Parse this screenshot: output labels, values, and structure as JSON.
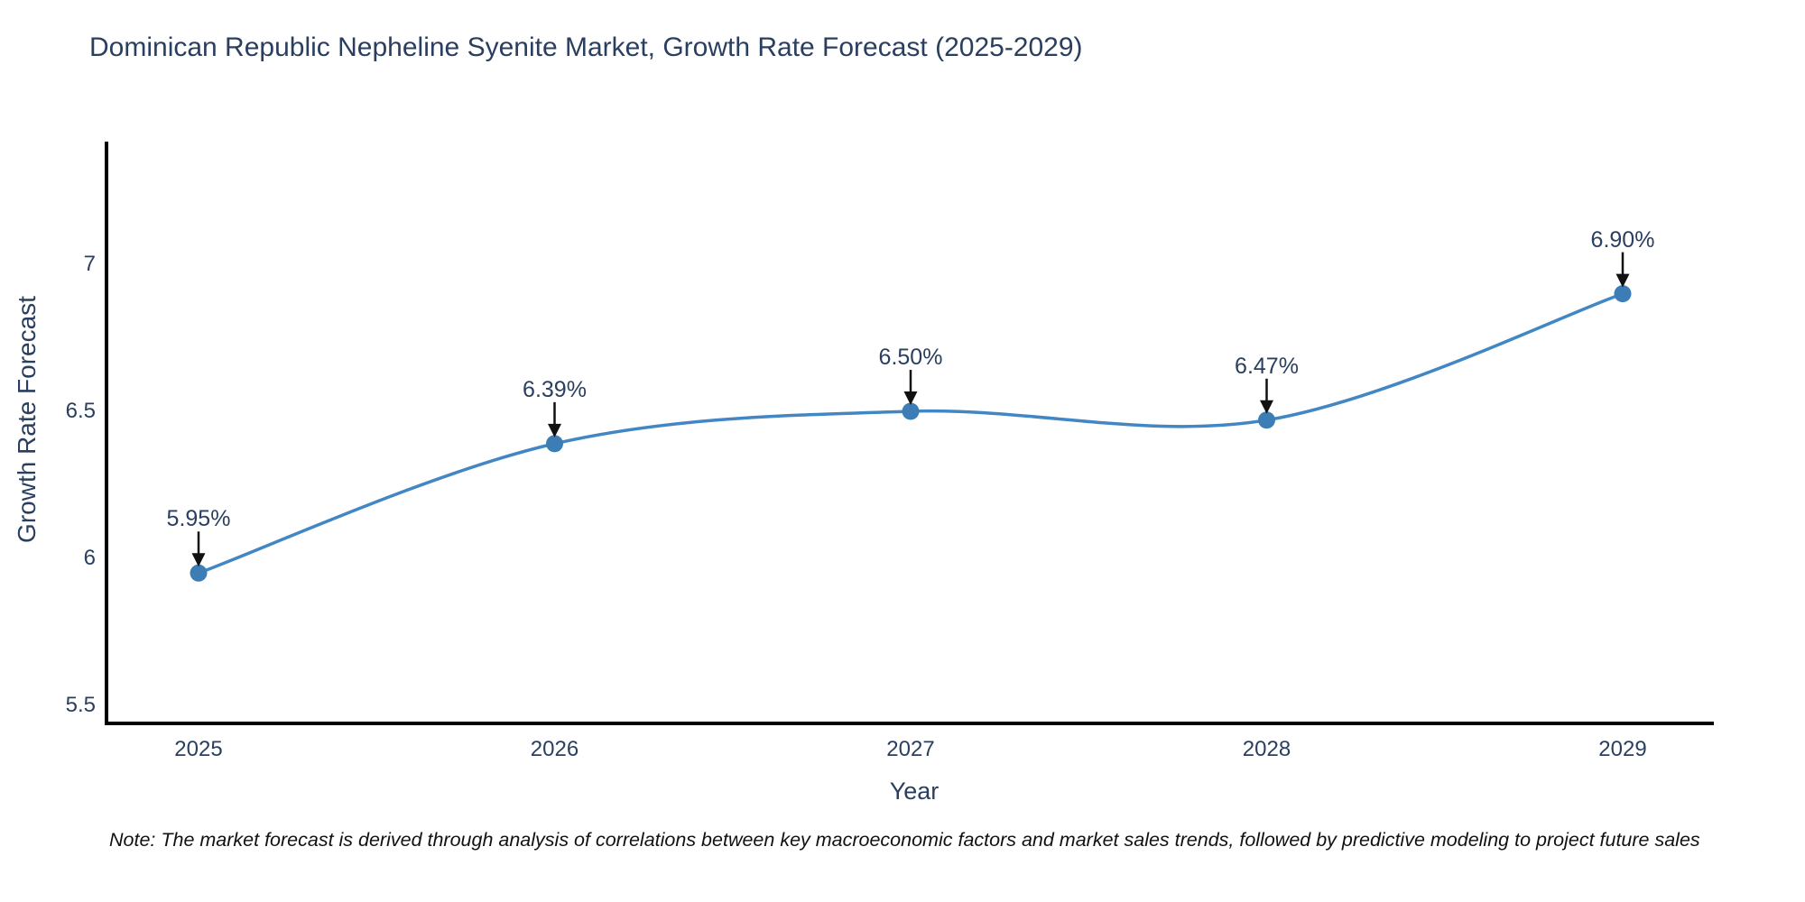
{
  "title": "Dominican Republic Nepheline Syenite Market, Growth Rate Forecast (2025-2029)",
  "note": "Note: The market forecast is derived through analysis of correlations between key macroeconomic factors and market sales trends, followed by predictive modeling to project future sales",
  "colors": {
    "line": "#4287c3",
    "marker": "#3c7db6",
    "text": "#2a3f5f",
    "axis": "#000000",
    "arrow": "#111111"
  },
  "chart_data": {
    "type": "line",
    "title": "Dominican Republic Nepheline Syenite Market, Growth Rate Forecast (2025-2029)",
    "xlabel": "Year",
    "ylabel": "Growth Rate Forecast",
    "x": [
      2025,
      2026,
      2027,
      2028,
      2029
    ],
    "values": [
      5.95,
      6.39,
      6.5,
      6.47,
      6.9
    ],
    "labels": [
      "5.95%",
      "6.39%",
      "6.50%",
      "6.47%",
      "6.90%"
    ],
    "yticks": [
      5.5,
      6,
      6.5,
      7
    ],
    "ytick_labels": [
      "5.5",
      "6",
      "6.5",
      "7"
    ],
    "xtick_labels": [
      "2025",
      "2026",
      "2027",
      "2028",
      "2029"
    ],
    "ylim": [
      5.44,
      7.41
    ],
    "line_shape": "spline",
    "grid": false,
    "legend": "none",
    "annotation_style": "black-down-arrow"
  }
}
